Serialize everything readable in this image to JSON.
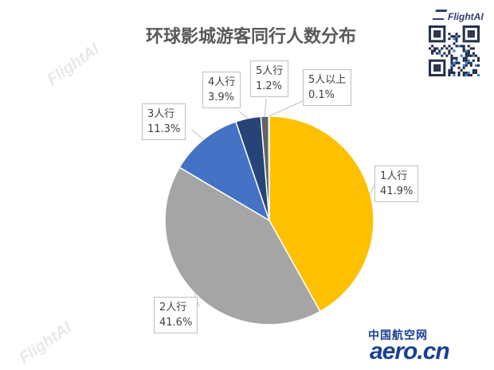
{
  "title": "环球影城游客同行人数分布",
  "brand": "FlightAI",
  "watermark": "FlightAI",
  "footer": {
    "cn": "中国航空网",
    "logo": "aero.cn"
  },
  "colors": {
    "slice_1": "#FFC000",
    "slice_2": "#A5A5A5",
    "slice_3": "#4472C4",
    "slice_4": "#264478",
    "slice_5": "#636363",
    "slice_6": "#997300"
  },
  "chart_data": {
    "type": "pie",
    "title": "环球影城游客同行人数分布",
    "labels": [
      "1人行",
      "2人行",
      "3人行",
      "4人行",
      "5人行",
      "5人以上"
    ],
    "values": [
      41.9,
      41.6,
      11.3,
      3.9,
      1.2,
      0.1
    ],
    "value_labels": [
      "41.9%",
      "41.6%",
      "11.3%",
      "3.9%",
      "1.2%",
      "0.1%"
    ],
    "start": "12 o'clock",
    "direction": "clockwise"
  }
}
